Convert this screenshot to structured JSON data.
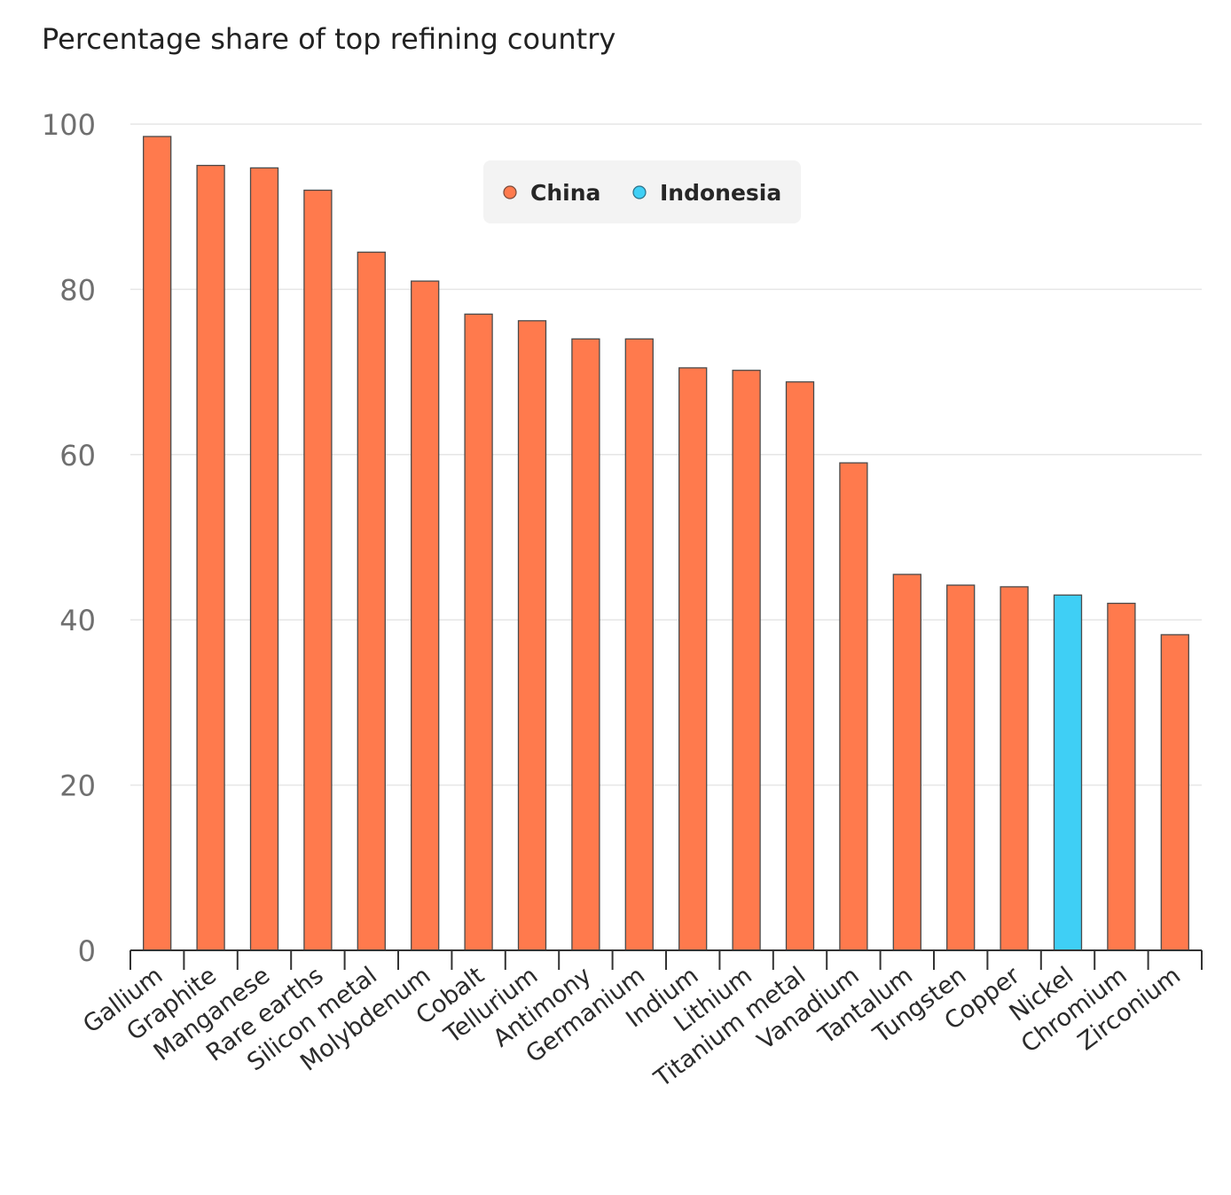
{
  "chart_data": {
    "type": "bar",
    "title": "Percentage share of top refining country",
    "xlabel": "",
    "ylabel": "",
    "ylim": [
      0,
      100
    ],
    "yticks": [
      0,
      20,
      40,
      60,
      80,
      100
    ],
    "grid": true,
    "legend_position": "top-center",
    "legend": [
      {
        "name": "China",
        "color": "#ff7a4d"
      },
      {
        "name": "Indonesia",
        "color": "#3fcff5"
      }
    ],
    "categories": [
      "Gallium",
      "Graphite",
      "Manganese",
      "Rare earths",
      "Silicon metal",
      "Molybdenum",
      "Cobalt",
      "Tellurium",
      "Antimony",
      "Germanium",
      "Indium",
      "Lithium",
      "Titanium metal",
      "Vanadium",
      "Tantalum",
      "Tungsten",
      "Copper",
      "Nickel",
      "Chromium",
      "Zirconium"
    ],
    "values": [
      98.5,
      95,
      94.7,
      92,
      84.5,
      81,
      77,
      76.2,
      74,
      74,
      70.5,
      70.2,
      68.8,
      59,
      45.5,
      44.2,
      44,
      43,
      42,
      38.2
    ],
    "country": [
      "China",
      "China",
      "China",
      "China",
      "China",
      "China",
      "China",
      "China",
      "China",
      "China",
      "China",
      "China",
      "China",
      "China",
      "China",
      "China",
      "China",
      "Indonesia",
      "China",
      "China"
    ]
  }
}
